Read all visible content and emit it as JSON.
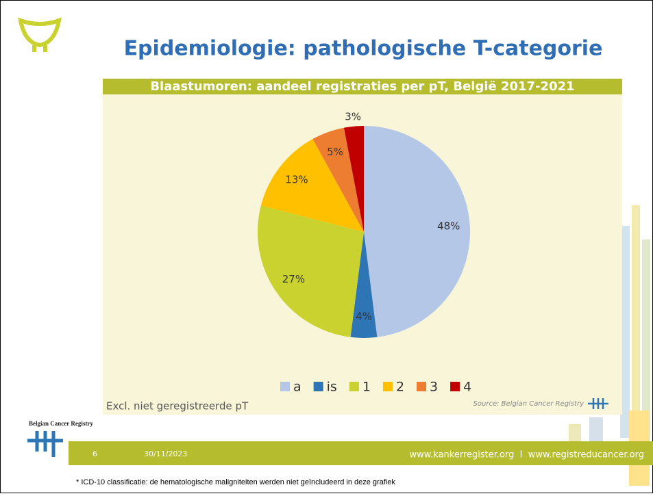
{
  "title": "Epidemiologie: pathologische T-categorie",
  "chart_data": {
    "type": "pie",
    "title": "Blaastumoren: aandeel registraties per pT, België 2017-2021",
    "categories": [
      "a",
      "is",
      "1",
      "2",
      "3",
      "4"
    ],
    "values": [
      48,
      4,
      27,
      13,
      5,
      3
    ],
    "value_labels": [
      "48%",
      "4%",
      "27%",
      "13%",
      "5%",
      "3%"
    ],
    "colors": [
      "#b4c7e7",
      "#2e75b6",
      "#c9d22e",
      "#ffc000",
      "#ed7d31",
      "#c00000"
    ],
    "legend": "bottom",
    "note": "Excl. niet geregistreerde pT",
    "source": "Source: Belgian Cancer Registry"
  },
  "footer": {
    "organisation": "Belgian Cancer Registry",
    "page": "6",
    "date": "30/11/2023",
    "links": "www.kankerregister.org  I  www.registreducancer.org",
    "footnote": "* ICD-10 classificatie: de hematologische maligniteiten werden niet geïncludeerd in deze grafiek"
  }
}
